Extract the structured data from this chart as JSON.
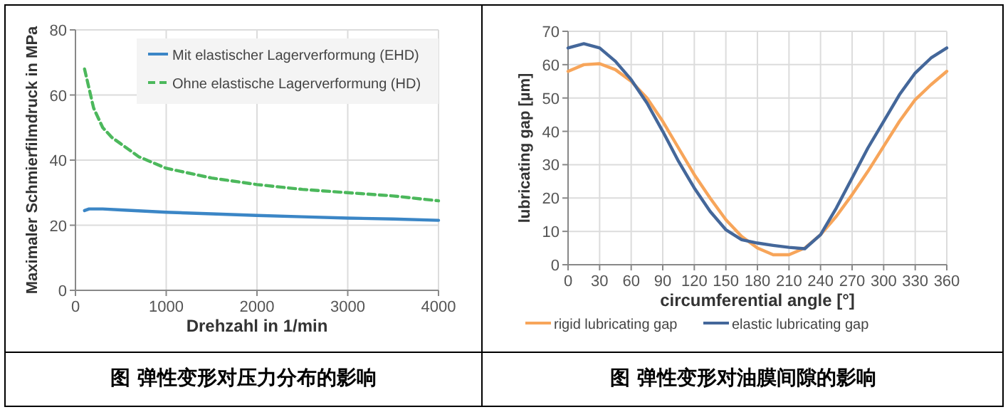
{
  "chart_data": [
    {
      "type": "line",
      "xlabel": "Drehzahl in 1/min",
      "ylabel": "Maximaler Schmierfilmdruck in MPa",
      "annotations": [
        "图  弹性变形对压力分布的影响"
      ],
      "xlim": [
        0,
        4000
      ],
      "ylim": [
        0,
        80
      ],
      "xticks": [
        0,
        1000,
        2000,
        3000,
        4000
      ],
      "yticks": [
        0,
        20,
        40,
        60,
        80
      ],
      "grid": true,
      "legend": "top right",
      "series": [
        {
          "name": "Mit elastischer Lagerverformung (EHD)",
          "color": "#3b86c6",
          "line_style": "solid",
          "x": [
            100,
            150,
            300,
            500,
            1000,
            1500,
            2000,
            2500,
            3000,
            3500,
            4000
          ],
          "values": [
            24.5,
            25,
            25,
            24.7,
            24,
            23.5,
            23,
            22.6,
            22.2,
            21.9,
            21.5
          ]
        },
        {
          "name": "Ohne elastische Lagerverformung (HD)",
          "color": "#4cb85c",
          "line_style": "dashed",
          "x": [
            100,
            150,
            200,
            300,
            400,
            500,
            700,
            1000,
            1500,
            2000,
            2500,
            3000,
            3500,
            4000
          ],
          "values": [
            68,
            62,
            56,
            50,
            47,
            45,
            41,
            37.5,
            34.5,
            32.5,
            31,
            30,
            29,
            27.5
          ]
        }
      ]
    },
    {
      "type": "line",
      "xlabel": "circumferential angle [°]",
      "ylabel": "lubricating gap [µm]",
      "annotations": [
        "图  弹性变形对油膜间隙的影响"
      ],
      "xlim": [
        0,
        360
      ],
      "ylim": [
        0,
        70
      ],
      "xticks": [
        0,
        30,
        60,
        90,
        120,
        150,
        180,
        210,
        240,
        270,
        300,
        330,
        360
      ],
      "yticks": [
        0,
        10,
        20,
        30,
        40,
        50,
        60,
        70
      ],
      "grid": true,
      "legend": "bottom",
      "x": [
        0,
        15,
        30,
        45,
        60,
        75,
        90,
        105,
        120,
        135,
        150,
        165,
        180,
        195,
        210,
        225,
        240,
        255,
        270,
        285,
        300,
        315,
        330,
        345,
        360
      ],
      "series": [
        {
          "name": "rigid lubricating gap",
          "color": "#f7a55a",
          "line_style": "solid",
          "values": [
            58,
            60,
            60.3,
            58.5,
            55,
            50,
            43,
            35,
            27,
            20,
            13.5,
            8.5,
            5,
            3,
            3,
            5,
            9,
            14.5,
            21,
            28,
            35.5,
            43,
            49.5,
            54,
            58
          ]
        },
        {
          "name": "elastic lubricating gap",
          "color": "#44679a",
          "line_style": "solid",
          "values": [
            65,
            66.3,
            65,
            61,
            55.5,
            48.5,
            40,
            31,
            23,
            16,
            10.5,
            7.5,
            6.5,
            5.8,
            5.2,
            4.8,
            9,
            17,
            26,
            35,
            43,
            51,
            57.5,
            62,
            65
          ]
        }
      ]
    }
  ]
}
